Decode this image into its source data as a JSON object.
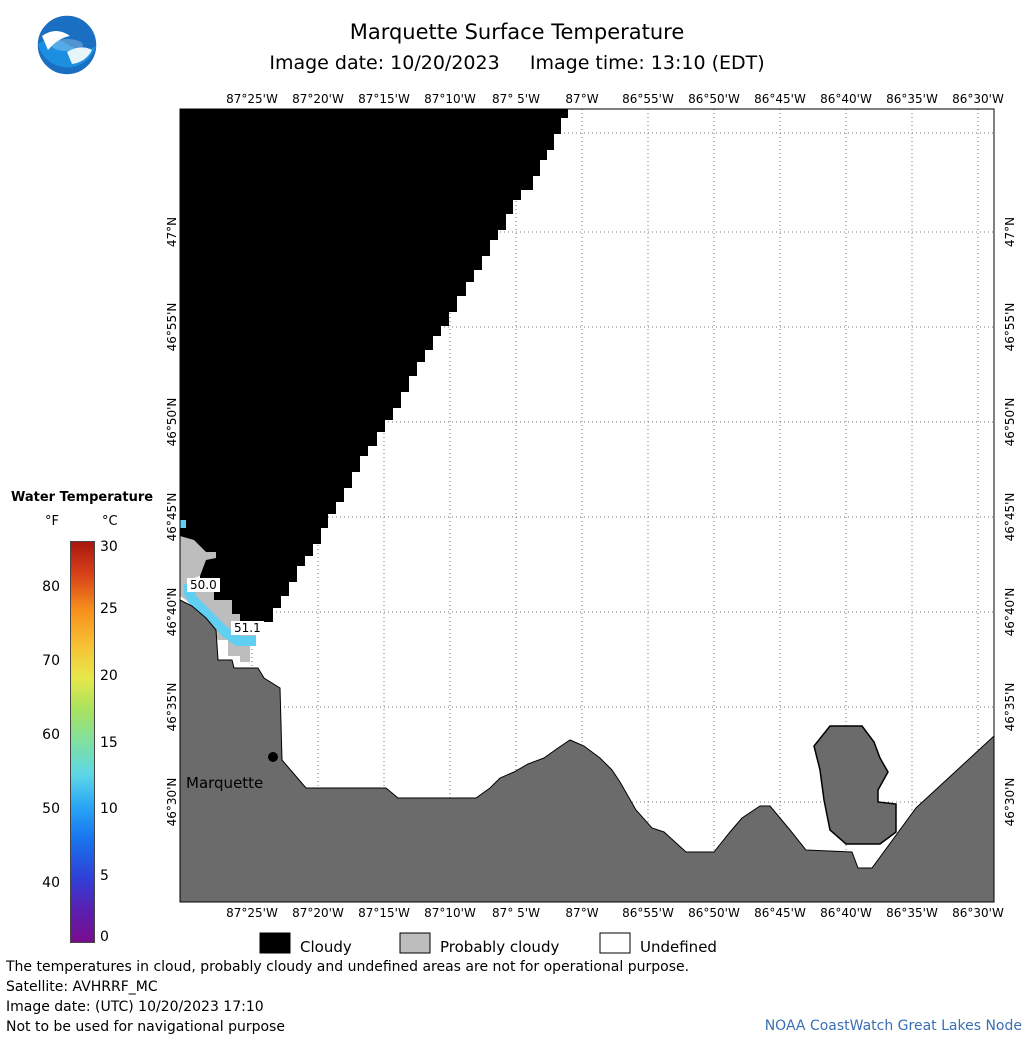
{
  "header": {
    "title": "Marquette Surface Temperature",
    "subtitle": "Image date: 10/20/2023     Image time: 13:10 (EDT)"
  },
  "map": {
    "lon_labels": [
      "87°25'W",
      "87°20'W",
      "87°15'W",
      "87°10'W",
      "87° 5'W",
      "87°W",
      "86°55'W",
      "86°50'W",
      "86°45'W",
      "86°40'W",
      "86°35'W",
      "86°30'W"
    ],
    "lat_labels": [
      "47°N",
      "46°55'N",
      "46°50'N",
      "46°45'N",
      "46°40'N",
      "46°35'N",
      "46°30'N"
    ],
    "city_label": "Marquette",
    "temp_labels": [
      "50.0",
      "51.1"
    ],
    "colors": {
      "cloud": "#000000",
      "land": "#6b6b6b",
      "probably_cloudy": "#bdbdbd",
      "water_cool": "#5fd0f2"
    }
  },
  "scale": {
    "title": "Water Temperature",
    "unit_f": "°F",
    "unit_c": "°C",
    "f_ticks": [
      "80",
      "70",
      "60",
      "50",
      "40"
    ],
    "c_ticks": [
      "30",
      "25",
      "20",
      "15",
      "10",
      "5",
      "0"
    ]
  },
  "legend": {
    "cloudy": "Cloudy",
    "probably_cloudy": "Probably cloudy",
    "undefined": "Undefined"
  },
  "footer": {
    "line1": "The temperatures in cloud, probably cloudy and undefined areas are not for operational purpose.",
    "line2": "Satellite: AVHRRF_MC",
    "line3": "Image date: (UTC) 10/20/2023  17:10",
    "line4": "Not to be used for navigational purpose",
    "credit": "NOAA CoastWatch Great Lakes Node"
  }
}
